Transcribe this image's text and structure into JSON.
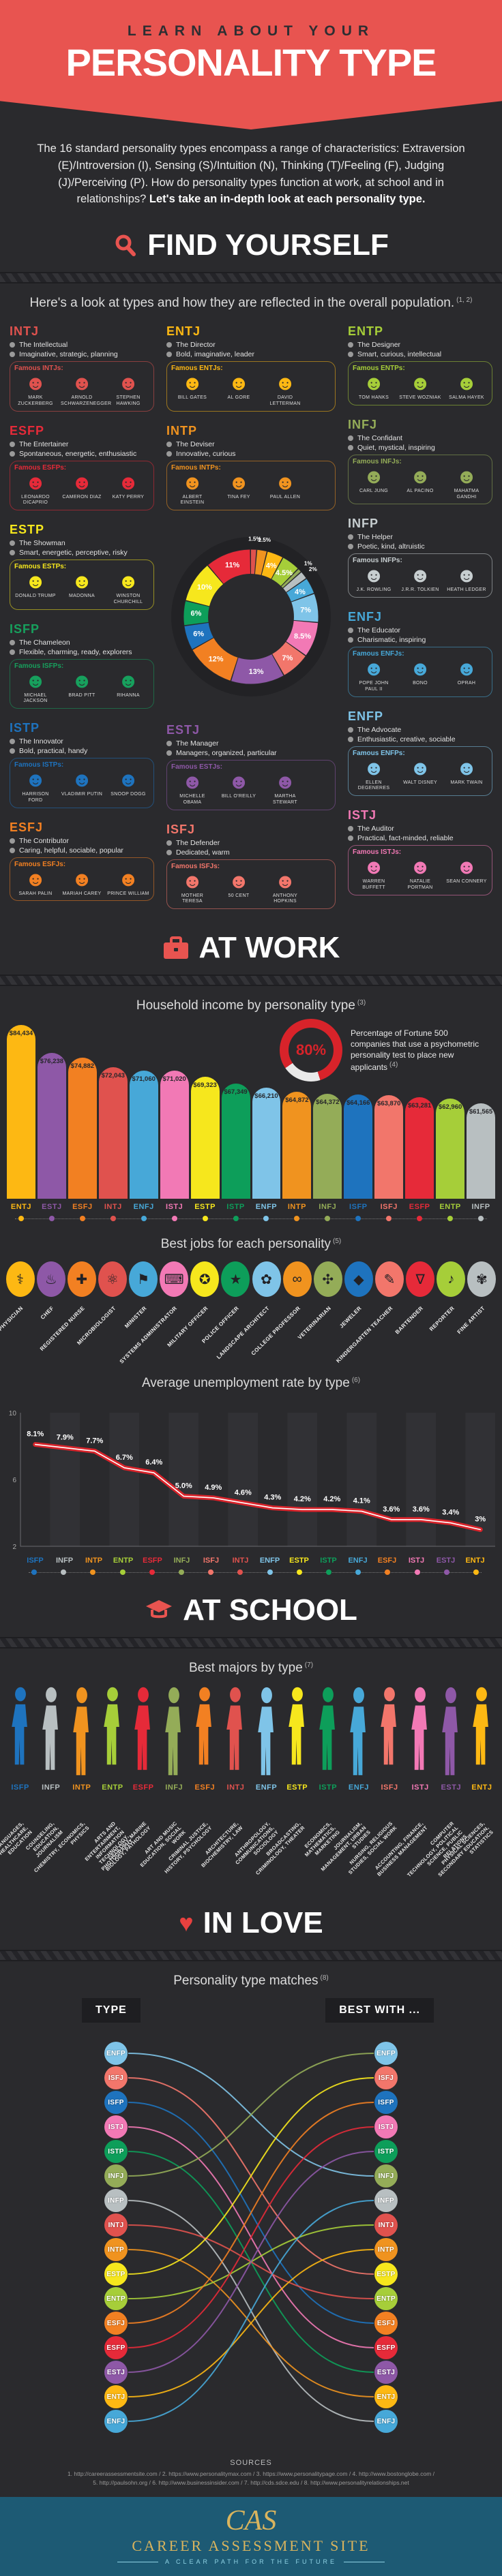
{
  "header": {
    "kicker": "LEARN ABOUT YOUR",
    "title": "PERSONALITY TYPE"
  },
  "intro": {
    "text": "The 16 standard personality types encompass a range of characteristics: Extraversion (E)/Introversion (I), Sensing (S)/Intuition (N), Thinking (T)/Feeling (F), Judging (J)/Perceiving (P). How do personality types function at work, at school and in relationships?",
    "bold": "Let's take an in-depth look at each personality type."
  },
  "sections": {
    "find_yourself": {
      "title": "FIND YOURSELF",
      "subtitle": "Here's a look at types and how they are reflected in the overall population.",
      "ref": "(1, 2)"
    },
    "at_work": {
      "title": "AT WORK",
      "income_subtitle": "Household income by personality type",
      "income_ref": "(3)",
      "stat_value": "80%",
      "stat_text": "Percentage of Fortune 500 companies that use a psychometric personality test to place new applicants",
      "stat_ref": "(4)",
      "jobs_subtitle": "Best jobs for each personality",
      "jobs_ref": "(5)",
      "unemployment_subtitle": "Average unemployment rate by type",
      "unemployment_ref": "(6)"
    },
    "at_school": {
      "title": "AT SCHOOL",
      "subtitle": "Best majors by type",
      "ref": "(7)"
    },
    "in_love": {
      "title": "IN LOVE",
      "subtitle": "Personality type matches",
      "ref": "(8)",
      "col_left": "TYPE",
      "col_right": "BEST WITH ..."
    }
  },
  "type_colors": {
    "ENTJ": "#fdb813",
    "ESTJ": "#8e58a7",
    "ESFJ": "#f28022",
    "INTJ": "#e0524e",
    "ENFJ": "#47a8d8",
    "ISTJ": "#f279b5",
    "ESTP": "#f6e71d",
    "ISTP": "#0d9e5a",
    "ENFP": "#7fc4e8",
    "INTP": "#f0931f",
    "INFJ": "#94ac58",
    "ISFP": "#1e73be",
    "ISFJ": "#f2766b",
    "ESFP": "#e62a39",
    "ENTP": "#a6ce39",
    "INFP": "#b8bfc1"
  },
  "types": [
    {
      "code": "INTJ",
      "color": "#e0524e",
      "title": "The Intellectual",
      "traits": "Imaginative, strategic, planning",
      "famous_label": "Famous INTJs:",
      "famous": [
        "MARK ZUCKERBERG",
        "ARNOLD SCHWARZENEGGER",
        "STEPHEN HAWKING"
      ]
    },
    {
      "code": "ENTJ",
      "color": "#fdb813",
      "title": "The Director",
      "traits": "Bold, imaginative, leader",
      "famous_label": "Famous ENTJs:",
      "famous": [
        "BILL GATES",
        "AL GORE",
        "DAVID LETTERMAN"
      ]
    },
    {
      "code": "ENTP",
      "color": "#a6ce39",
      "title": "The Designer",
      "traits": "Smart, curious, intellectual",
      "famous_label": "Famous ENTPs:",
      "famous": [
        "TOM HANKS",
        "STEVE WOZNIAK",
        "SALMA HAYEK"
      ]
    },
    {
      "code": "ESFP",
      "color": "#e62a39",
      "title": "The Entertainer",
      "traits": "Spontaneous, energetic, enthusiastic",
      "famous_label": "Famous ESFPs:",
      "famous": [
        "LEONARDO DICAPRIO",
        "CAMERON DIAZ",
        "KATY PERRY"
      ]
    },
    {
      "code": "INTP",
      "color": "#f0931f",
      "title": "The Deviser",
      "traits": "Innovative, curious",
      "famous_label": "Famous INTPs:",
      "famous": [
        "ALBERT EINSTEIN",
        "TINA FEY",
        "PAUL ALLEN"
      ]
    },
    {
      "code": "INFJ",
      "color": "#94ac58",
      "title": "The Confidant",
      "traits": "Quiet, mystical, inspiring",
      "famous_label": "Famous INFJs:",
      "famous": [
        "CARL JUNG",
        "AL PACINO",
        "MAHATMA GANDHI"
      ]
    },
    {
      "code": "ESTP",
      "color": "#f6e71d",
      "title": "The Showman",
      "traits": "Smart, energetic, perceptive, risky",
      "famous_label": "Famous ESTPs:",
      "famous": [
        "DONALD TRUMP",
        "MADONNA",
        "WINSTON CHURCHILL"
      ]
    },
    {
      "code": "INFP",
      "color": "#c7ced0",
      "title": "The Helper",
      "traits": "Poetic, kind, altruistic",
      "famous_label": "Famous INFPs:",
      "famous": [
        "J.K. ROWLING",
        "J.R.R. TOLKIEN",
        "HEATH LEDGER"
      ]
    },
    {
      "code": "ISFP",
      "color": "#17a05d",
      "title": "The Chameleon",
      "traits": "Flexible, charming, ready, explorers",
      "famous_label": "Famous ISFPs:",
      "famous": [
        "MICHAEL JACKSON",
        "BRAD PITT",
        "RIHANNA"
      ]
    },
    {
      "code": "ENFJ",
      "color": "#47a8d8",
      "title": "The Educator",
      "traits": "Charismatic, inspiring",
      "famous_label": "Famous ENFJs:",
      "famous": [
        "POPE JOHN PAUL II",
        "BONO",
        "OPRAH"
      ]
    },
    {
      "code": "ISTP",
      "color": "#1e73be",
      "title": "The Innovator",
      "traits": "Bold, practical, handy",
      "famous_label": "Famous ISTPs:",
      "famous": [
        "HARRISON FORD",
        "VLADIMIR PUTIN",
        "SNOOP DOGG"
      ]
    },
    {
      "code": "ESTJ",
      "color": "#8e58a7",
      "title": "The Manager",
      "traits": "Managers, organized, particular",
      "famous_label": "Famous ESTJs:",
      "famous": [
        "MICHELLE OBAMA",
        "BILL O'REILLY",
        "MARTHA STEWART"
      ]
    },
    {
      "code": "ENFP",
      "color": "#7fc4e8",
      "title": "The Advocate",
      "traits": "Enthusiastic, creative, sociable",
      "famous_label": "Famous ENFPs:",
      "famous": [
        "ELLEN DEGENERES",
        "WALT DISNEY",
        "MARK TWAIN"
      ]
    },
    {
      "code": "ESFJ",
      "color": "#f28022",
      "title": "The Contributor",
      "traits": "Caring, helpful, sociable, popular",
      "famous_label": "Famous ESFJs:",
      "famous": [
        "SARAH PALIN",
        "MARIAH CAREY",
        "PRINCE WILLIAM"
      ]
    },
    {
      "code": "ISFJ",
      "color": "#f2766b",
      "title": "The Defender",
      "traits": "Dedicated, warm",
      "famous_label": "Famous ISFJs:",
      "famous": [
        "MOTHER TERESA",
        "50 CENT",
        "ANTHONY HOPKINS"
      ]
    },
    {
      "code": "ISTJ",
      "color": "#f279b5",
      "title": "The Auditor",
      "traits": "Practical, fact-minded, reliable",
      "famous_label": "Famous ISTJs:",
      "famous": [
        "WARREN BUFFETT",
        "NATALIE PORTMAN",
        "SEAN CONNERY"
      ]
    }
  ],
  "chart_data": [
    {
      "id": "population_donut",
      "type": "pie",
      "title": "Types reflected in the overall population",
      "slices": [
        {
          "label": "INTJ",
          "value": 1.5,
          "display": "1.5%"
        },
        {
          "label": "INTP",
          "value": 2.5,
          "display": "2.5%"
        },
        {
          "label": "ENTJ",
          "value": 4,
          "display": "4%"
        },
        {
          "label": "ENTP",
          "value": 4.5,
          "display": "4.5%"
        },
        {
          "label": "INFJ",
          "value": 1,
          "display": "1%"
        },
        {
          "label": "INFP",
          "value": 2,
          "display": "2%"
        },
        {
          "label": "ENFJ",
          "value": 4,
          "display": "4%"
        },
        {
          "label": "ENFP",
          "value": 7,
          "display": "7%"
        },
        {
          "label": "ISTJ",
          "value": 8.5,
          "display": "8.5%"
        },
        {
          "label": "ISFJ",
          "value": 7,
          "display": "7%"
        },
        {
          "label": "ESTJ",
          "value": 13,
          "display": "13%"
        },
        {
          "label": "ESFJ",
          "value": 12,
          "display": "12%"
        },
        {
          "label": "ISFP",
          "value": 6,
          "display": "6%"
        },
        {
          "label": "ISTP",
          "value": 6,
          "display": "6%"
        },
        {
          "label": "ESTP",
          "value": 10,
          "display": "10%"
        },
        {
          "label": "ESFP",
          "value": 11,
          "display": "11%"
        }
      ]
    },
    {
      "id": "household_income",
      "type": "bar",
      "title": "Household income by personality type",
      "categories": [
        "ENTJ",
        "ESTJ",
        "ESFJ",
        "INTJ",
        "ENFJ",
        "ISTJ",
        "ESTP",
        "ISTP",
        "ENFP",
        "INTP",
        "INFJ",
        "ISFP",
        "ISFJ",
        "ESFP",
        "ENTP",
        "INFP"
      ],
      "values": [
        84434,
        76238,
        74882,
        72043,
        71060,
        71020,
        69323,
        67349,
        66210,
        64872,
        64372,
        64166,
        63870,
        63281,
        62960,
        61565
      ],
      "labels": [
        "$84,434",
        "$76,238",
        "$74,882",
        "$72,043",
        "$71,060",
        "$71,020",
        "$69,323",
        "$67,349",
        "$66,210",
        "$64,872",
        "$64,372",
        "$64,166",
        "$63,870",
        "$63,281",
        "$62,960",
        "$61,565"
      ]
    },
    {
      "id": "best_jobs",
      "type": "table",
      "title": "Best jobs for each personality",
      "items": [
        {
          "type": "ENTJ",
          "job": "PHYSICIAN",
          "icon": "stethoscope-icon",
          "glyph": "⚕"
        },
        {
          "type": "ESTJ",
          "job": "CHEF",
          "icon": "chef-hat-icon",
          "glyph": "♨"
        },
        {
          "type": "ESFJ",
          "job": "REGISTERED NURSE",
          "icon": "nurse-cross-icon",
          "glyph": "✚"
        },
        {
          "type": "INTJ",
          "job": "MICROBIOLOGIST",
          "icon": "microscope-icon",
          "glyph": "⚛"
        },
        {
          "type": "ENFJ",
          "job": "MINISTER",
          "icon": "flag-icon",
          "glyph": "⚑"
        },
        {
          "type": "ISTJ",
          "job": "SYSTEMS ADMINISTRATOR",
          "icon": "computer-icon",
          "glyph": "⌨"
        },
        {
          "type": "ESTP",
          "job": "MILITARY OFFICER",
          "icon": "star-badge-icon",
          "glyph": "✪"
        },
        {
          "type": "ISTP",
          "job": "POLICE OFFICER",
          "icon": "police-shield-icon",
          "glyph": "★"
        },
        {
          "type": "ENFP",
          "job": "LANDSCAPE ARCHITECT",
          "icon": "plant-icon",
          "glyph": "✿"
        },
        {
          "type": "INTP",
          "job": "COLLEGE PROFESSOR",
          "icon": "glasses-icon",
          "glyph": "∞"
        },
        {
          "type": "INFJ",
          "job": "VETERINARIAN",
          "icon": "paw-cross-icon",
          "glyph": "✣"
        },
        {
          "type": "ISFP",
          "job": "JEWELER",
          "icon": "diamond-icon",
          "glyph": "◆"
        },
        {
          "type": "ISFJ",
          "job": "KINDERGARTEN TEACHER",
          "icon": "pencil-icon",
          "glyph": "✎"
        },
        {
          "type": "ESFP",
          "job": "BARTENDER",
          "icon": "cocktail-icon",
          "glyph": "∇"
        },
        {
          "type": "ENTP",
          "job": "REPORTER",
          "icon": "microphone-icon",
          "glyph": "♪"
        },
        {
          "type": "INFP",
          "job": "FINE ARTIST",
          "icon": "palette-icon",
          "glyph": "✾"
        }
      ]
    },
    {
      "id": "unemployment",
      "type": "line",
      "title": "Average unemployment rate by type",
      "categories": [
        "ISFP",
        "INFP",
        "INTP",
        "ENTP",
        "ESFP",
        "INFJ",
        "ISFJ",
        "INTJ",
        "ENFP",
        "ESTP",
        "ISTP",
        "ENFJ",
        "ESFJ",
        "ISTJ",
        "ESTJ",
        "ENTJ"
      ],
      "values": [
        8.1,
        7.9,
        7.7,
        6.7,
        6.4,
        5.0,
        4.9,
        4.6,
        4.3,
        4.2,
        4.2,
        4.1,
        3.6,
        3.6,
        3.4,
        3.0
      ],
      "labels": [
        "8.1%",
        "7.9%",
        "7.7%",
        "6.7%",
        "6.4%",
        "5.0%",
        "4.9%",
        "4.6%",
        "4.3%",
        "4.2%",
        "4.2%",
        "4.1%",
        "3.6%",
        "3.6%",
        "3.4%",
        "3%"
      ],
      "ylim": [
        2,
        10
      ],
      "yticks": [
        2,
        6,
        10
      ],
      "line_color": "#d8232a",
      "grid": "striped"
    },
    {
      "id": "best_majors",
      "type": "table",
      "title": "Best majors by type",
      "items": [
        {
          "type": "ISFP",
          "majors": "FOREIGN LANGUAGES, HEALTHCARE, EDUCATION"
        },
        {
          "type": "INFP",
          "majors": "COUNSELING, EDUCATION, JOURNALISM"
        },
        {
          "type": "INTP",
          "majors": "CHEMISTRY, ECONOMICS, PHYSICS"
        },
        {
          "type": "ENTP",
          "majors": "ARTS AND ENTERTAINMENT, INFORMATION TECHNOLOGY, PHOTOGRAPHY"
        },
        {
          "type": "ESFP",
          "majors": "GEOLOGY, MARINE BIOLOGY, PATHOLOGY"
        },
        {
          "type": "INFJ",
          "majors": "ART AND MUSIC EDUCATION, SOCIAL WORK"
        },
        {
          "type": "ESFJ",
          "majors": "CRIMINAL JUSTICE, HISTORY, PSYCHOLOGY"
        },
        {
          "type": "INTJ",
          "majors": "ARCHITECTURE, BIOCHEMISTRY, LAW"
        },
        {
          "type": "ENFP",
          "majors": "ANTHROPOLOGY, COMMUNICATIONS, SOCIOLOGY"
        },
        {
          "type": "ESTP",
          "majors": "BROADCASTING, CRIMINOLOGY, THEATER"
        },
        {
          "type": "ISTP",
          "majors": "ECONOMICS, MATHEMATICS, MARKETING"
        },
        {
          "type": "ENFJ",
          "majors": "JOURNALISM, MANAGEMENT, URBAN STUDIES"
        },
        {
          "type": "ISFJ",
          "majors": "NURSING, RELIGIOUS STUDIES, SOCIAL WORK"
        },
        {
          "type": "ISTJ",
          "majors": "ACCOUNTING, FINANCE, BUSINESS MANAGEMENT"
        },
        {
          "type": "ESTJ",
          "majors": "COMPUTER TECHNOLOGY, POLITICAL SCIENCE, PUBLIC RELATIONS"
        },
        {
          "type": "ENTJ",
          "majors": "PHYSICAL SCIENCES, SECONDARY EDUCATION, STATISTICS"
        }
      ]
    },
    {
      "id": "type_matches",
      "type": "table",
      "title": "Personality type matches",
      "order": [
        "ENFP",
        "ISFJ",
        "ISFP",
        "ISTJ",
        "ISTP",
        "INFJ",
        "INFP",
        "INTJ",
        "INTP",
        "ESTP",
        "ENTP",
        "ESFJ",
        "ESFP",
        "ESTJ",
        "ENTJ",
        "ENFJ"
      ],
      "pairs": [
        {
          "type": "ENFP",
          "best_with": "INFJ"
        },
        {
          "type": "ISFJ",
          "best_with": "ESTP"
        },
        {
          "type": "ISFP",
          "best_with": "ESFJ"
        },
        {
          "type": "ISTJ",
          "best_with": "ESFP"
        },
        {
          "type": "ISTP",
          "best_with": "ESTJ"
        },
        {
          "type": "INFJ",
          "best_with": "ENFP"
        },
        {
          "type": "INFP",
          "best_with": "ENFJ"
        },
        {
          "type": "INTJ",
          "best_with": "ENTP"
        },
        {
          "type": "INTP",
          "best_with": "ENTJ"
        },
        {
          "type": "ESTP",
          "best_with": "ISFJ"
        },
        {
          "type": "ENTP",
          "best_with": "INTJ"
        },
        {
          "type": "ESFJ",
          "best_with": "ISFP"
        },
        {
          "type": "ESFP",
          "best_with": "ISTJ"
        },
        {
          "type": "ESTJ",
          "best_with": "ISTP"
        },
        {
          "type": "ENTJ",
          "best_with": "INTP"
        },
        {
          "type": "ENFJ",
          "best_with": "INFP"
        }
      ]
    }
  ],
  "stat_80": {
    "value": "80%",
    "ring_color": "#d8232a"
  },
  "sources": {
    "title": "SOURCES",
    "line1": "1. http://careerassessmentsite.com / 2. https://www.personalitymax.com / 3. https://www.personalitypage.com / 4. http://www.bostonglobe.com /",
    "line2": "5. http://paulsohn.org / 6. http://www.businessinsider.com / 7. http://cds.sdce.edu / 8. http://www.personalityrelationships.net"
  },
  "footer": {
    "logo": "CAS",
    "name": "CAREER ASSESSMENT SITE",
    "tagline": "A CLEAR PATH FOR THE FUTURE"
  }
}
